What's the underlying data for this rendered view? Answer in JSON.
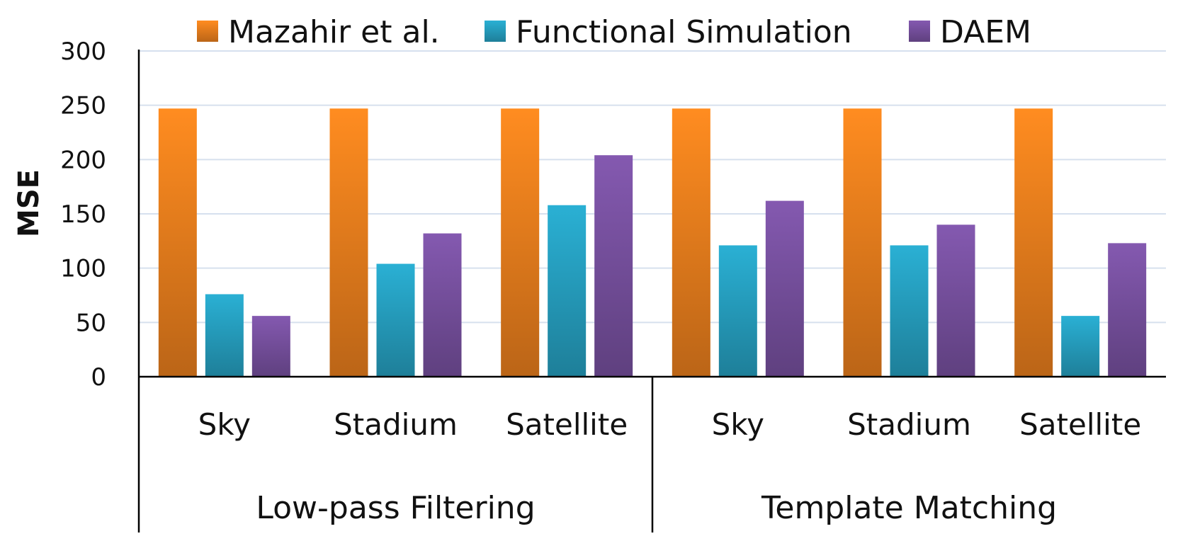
{
  "chart_data": {
    "type": "bar",
    "title": "",
    "xlabel": "",
    "ylabel": "MSE",
    "ylim": [
      0,
      300
    ],
    "yticks": [
      0,
      50,
      100,
      150,
      200,
      250,
      300
    ],
    "grid": true,
    "legend_position": "top",
    "groups": [
      {
        "label": "Low-pass Filtering",
        "categories": [
          "Sky",
          "Stadium",
          "Satellite"
        ]
      },
      {
        "label": "Template Matching",
        "categories": [
          "Sky",
          "Stadium",
          "Satellite"
        ]
      }
    ],
    "categories": [
      "Sky",
      "Stadium",
      "Satellite",
      "Sky",
      "Stadium",
      "Satellite"
    ],
    "series": [
      {
        "name": "Mazahir et al.",
        "color": "#f0821e",
        "values": [
          247,
          247,
          247,
          247,
          247,
          247
        ]
      },
      {
        "name": "Functional Simulation",
        "color": "#27a3c4",
        "values": [
          76,
          104,
          158,
          121,
          121,
          56
        ]
      },
      {
        "name": "DAEM",
        "color": "#7a52a3",
        "values": [
          56,
          132,
          204,
          162,
          140,
          123
        ]
      }
    ]
  }
}
